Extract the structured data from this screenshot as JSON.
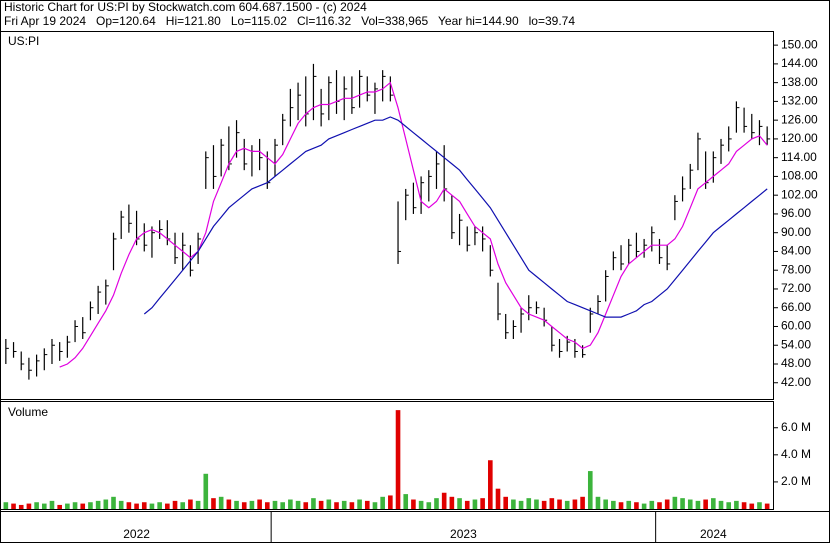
{
  "header": {
    "line1": "Historic Chart for US:PI by Stockwatch.com 604.687.1500 - (c) 2024",
    "line2": "Fri Apr 19 2024   Op=120.64   Hi=121.80   Lo=115.02   Cl=116.32   Vol=338,965   Year hi=144.90   lo=39.74"
  },
  "chart_data": {
    "type": "ohlc",
    "ticker": "US:PI",
    "bar_color": "#000000",
    "periods": [
      {
        "label": "2022",
        "bars": 35
      },
      {
        "label": "2023",
        "bars": 50
      },
      {
        "label": "2024",
        "bars": 15
      }
    ],
    "high": [
      56,
      55,
      52,
      50,
      51,
      53,
      56,
      55,
      57,
      62,
      63,
      68,
      73,
      75,
      90,
      97,
      99,
      97,
      93,
      92,
      94,
      94,
      90,
      90,
      86,
      90,
      116,
      118,
      120,
      124,
      126,
      120,
      118,
      120,
      116,
      120,
      128,
      136,
      138,
      140,
      144,
      136,
      140,
      142,
      140,
      140,
      142,
      140,
      138,
      142,
      140,
      100,
      104,
      106,
      108,
      110,
      116,
      118,
      102,
      96,
      92,
      92,
      92,
      86,
      74,
      64,
      62,
      66,
      70,
      68,
      66,
      60,
      56,
      57,
      56,
      54,
      66,
      70,
      78,
      84,
      86,
      88,
      90,
      88,
      92,
      88,
      86,
      102,
      108,
      112,
      122,
      116,
      116,
      120,
      124,
      132,
      130,
      128,
      126,
      124
    ],
    "low": [
      48,
      50,
      46,
      43,
      44,
      46,
      48,
      49,
      50,
      55,
      56,
      62,
      64,
      67,
      78,
      88,
      90,
      86,
      84,
      82,
      88,
      86,
      80,
      78,
      76,
      80,
      104,
      104,
      108,
      110,
      114,
      110,
      108,
      110,
      104,
      108,
      118,
      124,
      126,
      124,
      126,
      124,
      126,
      128,
      126,
      128,
      130,
      132,
      128,
      132,
      132,
      80,
      94,
      96,
      96,
      100,
      104,
      100,
      88,
      86,
      84,
      86,
      84,
      76,
      62,
      56,
      56,
      58,
      62,
      64,
      60,
      52,
      50,
      52,
      50,
      50,
      58,
      64,
      68,
      78,
      78,
      80,
      82,
      82,
      84,
      80,
      78,
      94,
      100,
      104,
      110,
      104,
      106,
      112,
      116,
      122,
      122,
      120,
      118,
      118
    ],
    "close": [
      53,
      52,
      48,
      46,
      49,
      51,
      54,
      52,
      55,
      60,
      58,
      66,
      71,
      73,
      88,
      95,
      93,
      88,
      86,
      90,
      91,
      88,
      82,
      86,
      78,
      88,
      114,
      108,
      118,
      112,
      122,
      112,
      116,
      114,
      106,
      118,
      126,
      130,
      134,
      128,
      140,
      128,
      138,
      132,
      136,
      130,
      140,
      134,
      136,
      140,
      134,
      84,
      102,
      98,
      106,
      108,
      112,
      104,
      90,
      94,
      86,
      90,
      88,
      78,
      64,
      58,
      60,
      64,
      66,
      66,
      62,
      54,
      52,
      55,
      52,
      51,
      64,
      68,
      76,
      82,
      80,
      86,
      84,
      86,
      90,
      82,
      80,
      100,
      104,
      110,
      120,
      106,
      114,
      118,
      120,
      130,
      124,
      122,
      124,
      120
    ],
    "moving_averages": [
      {
        "color": "#e000e0",
        "values": [
          null,
          null,
          null,
          null,
          null,
          null,
          null,
          47,
          48,
          50,
          53,
          57,
          61,
          65,
          70,
          77,
          83,
          88,
          90,
          91,
          90,
          88,
          86,
          84,
          82,
          84,
          90,
          100,
          106,
          112,
          116,
          117,
          116,
          116,
          114,
          112,
          115,
          120,
          125,
          128,
          130,
          131,
          131,
          132,
          133,
          133,
          134,
          135,
          135,
          136,
          138,
          130,
          120,
          110,
          100,
          98,
          100,
          104,
          102,
          100,
          96,
          92,
          90,
          88,
          80,
          74,
          70,
          66,
          64,
          63,
          62,
          60,
          58,
          56,
          55,
          53,
          54,
          58,
          64,
          70,
          76,
          80,
          82,
          84,
          86,
          86,
          86,
          88,
          92,
          98,
          104,
          106,
          108,
          110,
          112,
          116,
          118,
          120,
          121,
          118
        ]
      },
      {
        "color": "#1010b0",
        "values": [
          null,
          null,
          null,
          null,
          null,
          null,
          null,
          null,
          null,
          null,
          null,
          null,
          null,
          null,
          null,
          null,
          null,
          null,
          64,
          66,
          69,
          72,
          75,
          78,
          81,
          84,
          88,
          92,
          95,
          98,
          100,
          102,
          104,
          105,
          106,
          108,
          110,
          112,
          114,
          116,
          117,
          118,
          120,
          121,
          122,
          123,
          124,
          125,
          126,
          126,
          127,
          126,
          124,
          122,
          120,
          118,
          116,
          114,
          112,
          110,
          107,
          104,
          101,
          98,
          94,
          90,
          86,
          82,
          78,
          76,
          74,
          72,
          70,
          68,
          67,
          66,
          65,
          64,
          63,
          63,
          63,
          64,
          65,
          67,
          68,
          70,
          72,
          75,
          78,
          81,
          84,
          87,
          90,
          92,
          94,
          96,
          98,
          100,
          102,
          104
        ]
      }
    ],
    "ylim": [
      36.8,
      154.2
    ],
    "yticks": [
      {
        "value": 42,
        "label": "42.00"
      },
      {
        "value": 48,
        "label": "48.00"
      },
      {
        "value": 54,
        "label": "54.00"
      },
      {
        "value": 60,
        "label": "60.00"
      },
      {
        "value": 66,
        "label": "66.00"
      },
      {
        "value": 72,
        "label": "72.00"
      },
      {
        "value": 78,
        "label": "78.00"
      },
      {
        "value": 84,
        "label": "84.00"
      },
      {
        "value": 90,
        "label": "90.00"
      },
      {
        "value": 96,
        "label": "96.00"
      },
      {
        "value": 102,
        "label": "102.00"
      },
      {
        "value": 108,
        "label": "108.00"
      },
      {
        "value": 114,
        "label": "114.00"
      },
      {
        "value": 120,
        "label": "120.00"
      },
      {
        "value": 126,
        "label": "126.00"
      },
      {
        "value": 132,
        "label": "132.00"
      },
      {
        "value": 138,
        "label": "138.00"
      },
      {
        "value": 144,
        "label": "144.00"
      },
      {
        "value": 150,
        "label": "150.00"
      }
    ],
    "volume": {
      "label": "Volume",
      "up_color": "#3cb43c",
      "down_color": "#e00000",
      "values": [
        0.5,
        0.4,
        0.3,
        0.4,
        0.5,
        0.4,
        0.6,
        0.3,
        0.4,
        0.5,
        0.4,
        0.5,
        0.6,
        0.7,
        0.9,
        0.6,
        0.5,
        0.4,
        0.5,
        0.4,
        0.5,
        0.4,
        0.6,
        0.5,
        0.7,
        0.6,
        2.6,
        0.8,
        0.9,
        0.7,
        0.6,
        0.5,
        0.6,
        0.7,
        0.5,
        0.6,
        0.5,
        0.7,
        0.6,
        0.5,
        0.8,
        0.6,
        0.7,
        0.5,
        0.6,
        0.5,
        0.7,
        0.6,
        0.5,
        0.9,
        1.0,
        7.3,
        1.1,
        0.7,
        0.6,
        0.5,
        0.8,
        1.2,
        0.9,
        0.8,
        0.6,
        0.7,
        0.8,
        3.6,
        1.5,
        0.9,
        0.7,
        0.6,
        0.8,
        0.7,
        0.6,
        0.8,
        0.7,
        0.6,
        0.7,
        0.9,
        2.8,
        0.9,
        0.7,
        0.6,
        0.5,
        0.6,
        0.5,
        0.4,
        0.6,
        0.5,
        0.7,
        0.9,
        0.8,
        0.7,
        0.6,
        0.7,
        0.8,
        0.6,
        0.5,
        0.6,
        0.5,
        0.4,
        0.5,
        0.4
      ],
      "ylim": [
        0,
        7.9
      ],
      "yticks": [
        {
          "value": 2,
          "label": "2.0 M"
        },
        {
          "value": 4,
          "label": "4.0 M"
        },
        {
          "value": 6,
          "label": "6.0 M"
        }
      ]
    }
  }
}
